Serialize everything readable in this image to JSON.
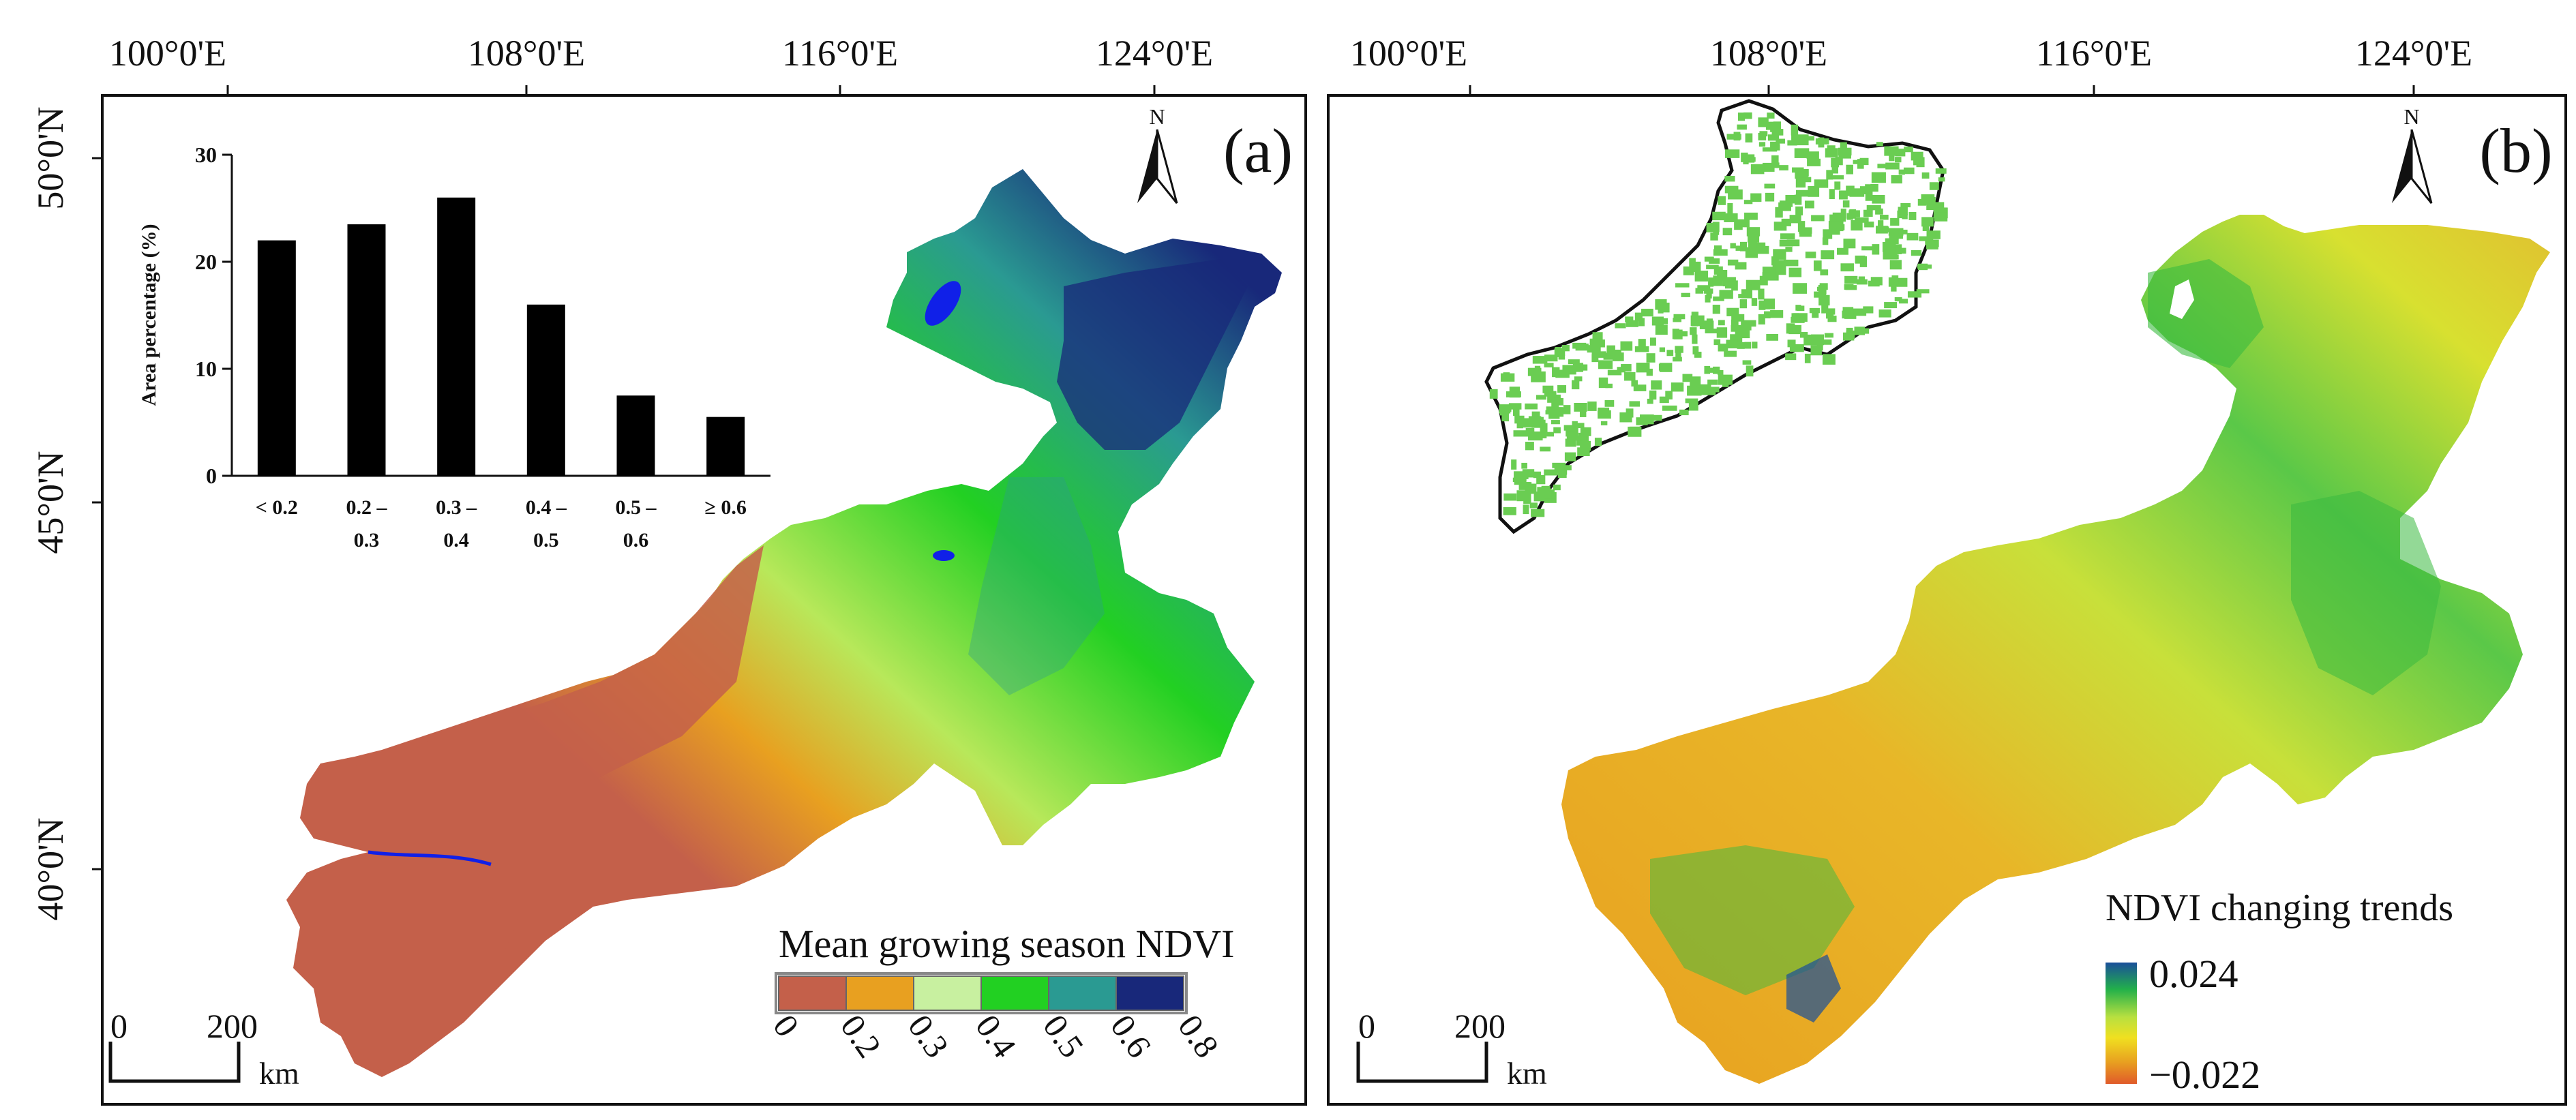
{
  "panel_a": {
    "label": "(a)",
    "north": "N",
    "lon_ticks": [
      "100°0'E",
      "108°0'E",
      "116°0'E",
      "124°0'E"
    ],
    "lat_ticks": [
      "50°0'N",
      "45°0'N",
      "40°0'N"
    ],
    "scale_zero": "0",
    "scale_max": "200",
    "scale_unit": "km",
    "legend_title": "Mean growing season NDVI",
    "legend_ticks": [
      "0",
      "0.2",
      "0.3",
      "0.4",
      "0.5",
      "0.6",
      "0.8"
    ],
    "legend_colors": [
      "#c4604a",
      "#e8a020",
      "#c8f0a0",
      "#22d022",
      "#2a9a92",
      "#18287a"
    ],
    "water_color": "#1020e8"
  },
  "panel_b": {
    "label": "(b)",
    "north": "N",
    "lon_ticks": [
      "100°0'E",
      "108°0'E",
      "116°0'E",
      "124°0'E"
    ],
    "scale_zero": "0",
    "scale_max": "200",
    "scale_unit": "km",
    "legend_title": "NDVI changing trends",
    "legend_max": "0.024",
    "legend_min": "−0.022",
    "ramp_colors": [
      "#1a4f9a",
      "#22b04a",
      "#b8e040",
      "#f0e020",
      "#e8a020",
      "#e05a2a"
    ],
    "inset_colors": [
      "#ffffff",
      "#6acd52"
    ]
  },
  "inset_chart": {
    "ylabel": "Area percentage (%)",
    "yticks": [
      "0",
      "10",
      "20",
      "30"
    ],
    "bar_color": "#000000"
  },
  "chart_data": {
    "type": "bar",
    "categories": [
      "< 0.2",
      "0.2 – 0.3",
      "0.3 – 0.4",
      "0.4 – 0.5",
      "0.5 – 0.6",
      "≥ 0.6"
    ],
    "values": [
      22,
      23.5,
      26,
      16,
      7.5,
      5.5
    ],
    "ylim": [
      0,
      30
    ],
    "ylabel": "Area percentage (%)",
    "xlabel": "",
    "title": ""
  }
}
